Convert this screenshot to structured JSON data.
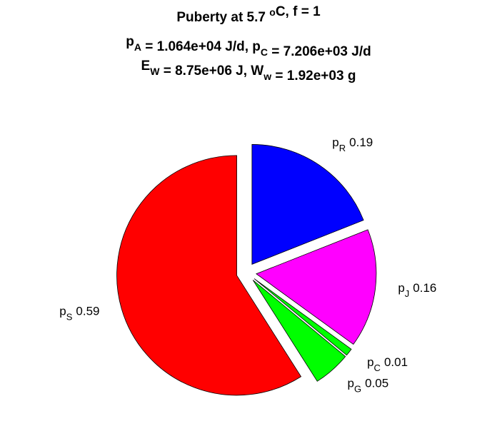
{
  "chart_data": {
    "type": "pie",
    "title": [
      [
        {
          "text": "Puberty at 5.7 "
        },
        {
          "sup": "o"
        },
        {
          "text": "C, f = 1"
        }
      ],
      [
        {
          "text": "p"
        },
        {
          "sub": "A"
        },
        {
          "text": " = 1.064e+04 J/d,  p"
        },
        {
          "sub": "C"
        },
        {
          "text": " = 7.206e+03 J/d"
        }
      ],
      [
        {
          "text": "E"
        },
        {
          "sub": "W"
        },
        {
          "text": " = 8.75e+06 J, W"
        },
        {
          "sub": "w"
        },
        {
          "text": " = 1.92e+03 g"
        }
      ]
    ],
    "categories": [
      {
        "text": "p",
        "sub": "R"
      },
      {
        "text": "p",
        "sub": "J"
      },
      {
        "text": "p",
        "sub": "C"
      },
      {
        "text": "p",
        "sub": "G"
      },
      {
        "text": "p",
        "sub": "S"
      }
    ],
    "values": [
      0.19,
      0.16,
      0.01,
      0.05,
      0.59
    ],
    "colors": [
      "#0000ff",
      "#ff00ff",
      "#00ff00",
      "#00ff00",
      "#ff0000"
    ],
    "exploded": true
  }
}
